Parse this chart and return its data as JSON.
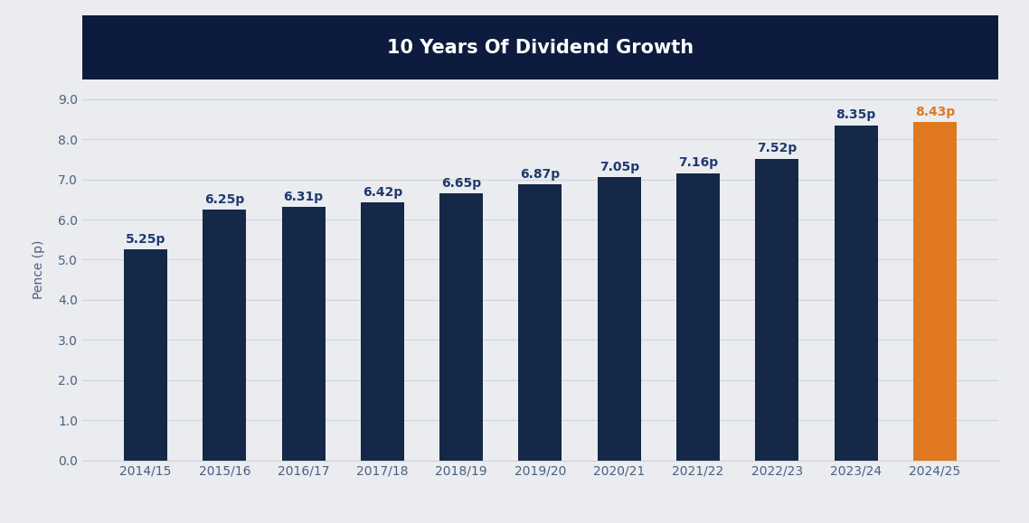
{
  "title": "10 Years Of Dividend Growth",
  "title_bg_color": "#0d1b3e",
  "title_text_color": "#ffffff",
  "bg_color": "#eaecf0",
  "bar_categories": [
    "2014/15",
    "2015/16",
    "2016/17",
    "2017/18",
    "2018/19",
    "2019/20",
    "2020/21",
    "2021/22",
    "2022/23",
    "2023/24",
    "2024/25"
  ],
  "bar_values": [
    5.25,
    6.25,
    6.31,
    6.42,
    6.65,
    6.87,
    7.05,
    7.16,
    7.52,
    8.35,
    8.43
  ],
  "bar_labels": [
    "5.25p",
    "6.25p",
    "6.31p",
    "6.42p",
    "6.65p",
    "6.87p",
    "7.05p",
    "7.16p",
    "7.52p",
    "8.35p",
    "8.43p"
  ],
  "bar_colors": [
    "#152848",
    "#152848",
    "#152848",
    "#152848",
    "#152848",
    "#152848",
    "#152848",
    "#152848",
    "#152848",
    "#152848",
    "#e07820"
  ],
  "label_colors": [
    "#1e3a6e",
    "#1e3a6e",
    "#1e3a6e",
    "#1e3a6e",
    "#1e3a6e",
    "#1e3a6e",
    "#1e3a6e",
    "#1e3a6e",
    "#1e3a6e",
    "#1e3a6e",
    "#e07820"
  ],
  "ylabel": "Pence (p)",
  "ylim": [
    0,
    9.5
  ],
  "yticks": [
    0.0,
    1.0,
    2.0,
    3.0,
    4.0,
    5.0,
    6.0,
    7.0,
    8.0,
    9.0
  ],
  "axis_color": "#4a6080",
  "tick_color": "#4a6080",
  "grid_color": "#d0d3d8",
  "bar_width": 0.55,
  "label_fontsize": 10,
  "tick_fontsize": 10,
  "ylabel_fontsize": 10
}
